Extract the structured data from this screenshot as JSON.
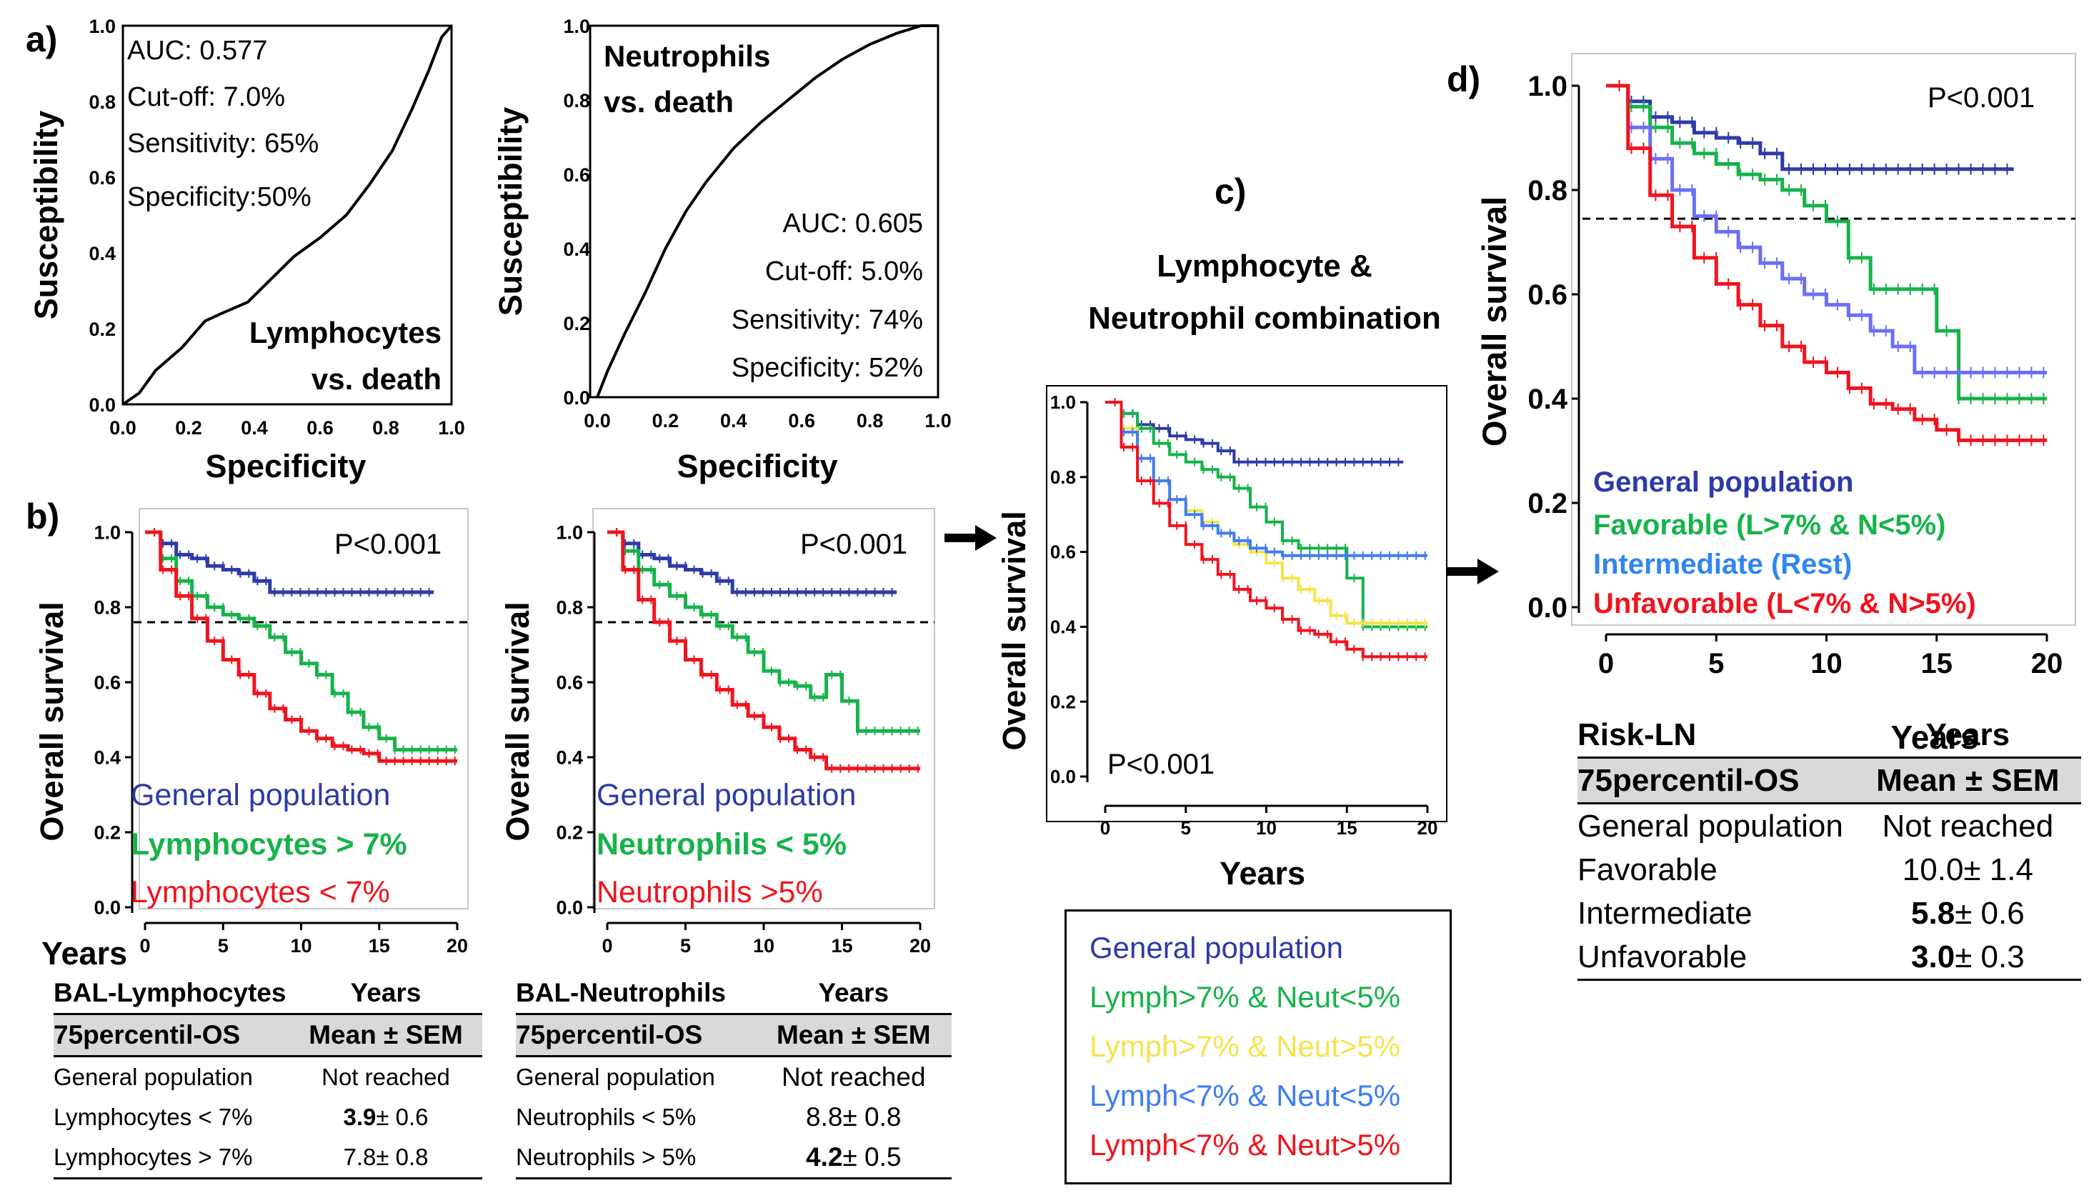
{
  "panels": {
    "a_label": "a)",
    "b_label": "b)",
    "c_label": "c)",
    "d_label": "d)"
  },
  "colors": {
    "general": "#2e3aa8",
    "lymph_gt7": "#16b34a",
    "lymph_lt7": "#f0141e",
    "yellow": "#f5e44c",
    "lightblue": "#3f7df2",
    "intermediate": "#6b6ff5",
    "intermediate_text": "#2f86f0"
  },
  "roc_lymph": {
    "ylabel": "Susceptibility",
    "xlabel": "Specificity",
    "ticks": [
      "0.0",
      "0.2",
      "0.4",
      "0.6",
      "0.8",
      "1.0"
    ],
    "ann": [
      "AUC: 0.577",
      "Cut-off: 7.0%",
      "Sensitivity: 65%",
      "Specificity:50%"
    ],
    "title1": "Lymphocytes",
    "title2": "vs. death"
  },
  "roc_neut": {
    "ylabel": "Susceptibility",
    "xlabel": "Specificity",
    "ticks": [
      "0.0",
      "0.2",
      "0.4",
      "0.6",
      "0.8",
      "1.0"
    ],
    "ann": [
      "AUC: 0.605",
      "Cut-off: 5.0%",
      "Sensitivity: 74%",
      "Specificity: 52%"
    ],
    "title1": "Neutrophils",
    "title2": "vs. death"
  },
  "km_b1": {
    "ylabel": "Overall survival",
    "xlabel": "Years",
    "pval": "P<0.001",
    "yticks": [
      "0.0",
      "0.2",
      "0.4",
      "0.6",
      "0.8",
      "1.0"
    ],
    "xticks": [
      "0",
      "5",
      "10",
      "15",
      "20"
    ],
    "legend": [
      "General population",
      "Lymphocytes > 7%",
      "Lymphocytes < 7%"
    ]
  },
  "km_b2": {
    "ylabel": "Overall survival",
    "pval": "P<0.001",
    "yticks": [
      "0.0",
      "0.2",
      "0.4",
      "0.6",
      "0.8",
      "1.0"
    ],
    "xticks": [
      "0",
      "5",
      "10",
      "15",
      "20"
    ],
    "legend": [
      "General population",
      "Neutrophils < 5%",
      "Neutrophils >5%"
    ]
  },
  "km_c": {
    "title1": "Lymphocyte &",
    "title2": "Neutrophil combination",
    "ylabel": "Overall survival",
    "xlabel": "Years",
    "pval": "P<0.001",
    "yticks": [
      "0.0",
      "0.2",
      "0.4",
      "0.6",
      "0.8",
      "1.0"
    ],
    "xticks": [
      "0",
      "5",
      "10",
      "15",
      "20"
    ],
    "legend": [
      "General population",
      "Lymph>7% & Neut<5%",
      "Lymph>7% & Neut>5%",
      "Lymph<7% & Neut<5%",
      "Lymph<7% & Neut>5%"
    ]
  },
  "km_d": {
    "ylabel": "Overall survival",
    "xlabel": "Years",
    "pval": "P<0.001",
    "yticks": [
      "0.0",
      "0.2",
      "0.4",
      "0.6",
      "0.8",
      "1.0"
    ],
    "xticks": [
      "0",
      "5",
      "10",
      "15",
      "20"
    ],
    "legend": [
      "General population",
      "Favorable (L>7% & N<5%)",
      "Intermediate (Rest)",
      "Unfavorable  (L<7% & N>5%)"
    ]
  },
  "table_b1": {
    "h1": "BAL-Lymphocytes",
    "h2": "Years",
    "s1": "75percentil-OS",
    "s2": "Mean ± SEM",
    "rows": [
      {
        "label": "General population",
        "value": "Not reached"
      },
      {
        "label": "Lymphocytes < 7%",
        "bold": "3.9",
        "rest": "± 0.6"
      },
      {
        "label": "Lymphocytes > 7%",
        "bold": "",
        "rest": "7.8± 0.8"
      }
    ]
  },
  "table_b2": {
    "h1": "BAL-Neutrophils",
    "h2": "Years",
    "s1": "75percentil-OS",
    "s2": "Mean ± SEM",
    "rows": [
      {
        "label": "General population",
        "value": "Not reached"
      },
      {
        "label": "Neutrophils < 5%",
        "bold": "",
        "rest": "8.8± 0.8"
      },
      {
        "label": "Neutrophils > 5%",
        "bold": "4.2",
        "rest": "± 0.5"
      }
    ]
  },
  "table_d": {
    "h1": "Risk-LN",
    "h2": "Years",
    "s1": "75percentil-OS",
    "s2": "Mean ± SEM",
    "rows": [
      {
        "label": "General population",
        "value": "Not reached"
      },
      {
        "label": "Favorable",
        "bold": "",
        "rest": "10.0± 1.4"
      },
      {
        "label": "Intermediate",
        "bold": "5.8",
        "rest": "± 0.6"
      },
      {
        "label": "Unfavorable",
        "bold": "3.0",
        "rest": "± 0.3"
      }
    ]
  },
  "chart_data": [
    {
      "type": "line",
      "panel": "a-left",
      "xlabel": "Specificity",
      "ylabel": "Susceptibility",
      "xlim": [
        0,
        1
      ],
      "ylim": [
        0,
        1
      ],
      "series": [
        {
          "x": [
            0,
            0.05,
            0.1,
            0.18,
            0.25,
            0.3,
            0.38,
            0.45,
            0.52,
            0.6,
            0.68,
            0.75,
            0.82,
            0.88,
            0.93,
            0.97,
            1.0
          ],
          "y": [
            0,
            0.03,
            0.09,
            0.15,
            0.22,
            0.24,
            0.27,
            0.33,
            0.39,
            0.44,
            0.5,
            0.58,
            0.67,
            0.78,
            0.88,
            0.97,
            1.0
          ]
        }
      ]
    },
    {
      "type": "line",
      "panel": "a-right",
      "xlabel": "Specificity",
      "ylabel": "Susceptibility",
      "xlim": [
        0,
        1
      ],
      "ylim": [
        0,
        1
      ],
      "series": [
        {
          "x": [
            0,
            0.03,
            0.08,
            0.14,
            0.2,
            0.26,
            0.32,
            0.4,
            0.48,
            0.56,
            0.64,
            0.72,
            0.8,
            0.88,
            0.95,
            1.0
          ],
          "y": [
            0,
            0.07,
            0.17,
            0.28,
            0.4,
            0.5,
            0.58,
            0.67,
            0.74,
            0.8,
            0.86,
            0.91,
            0.95,
            0.98,
            1.0,
            1.0
          ]
        }
      ]
    },
    {
      "type": "line",
      "panel": "b-left",
      "xlabel": "Years",
      "ylabel": "Overall survival",
      "xlim": [
        0,
        20
      ],
      "ylim": [
        0,
        1
      ],
      "reference_line_y": 0.76,
      "series": [
        {
          "name": "General population",
          "x": [
            0,
            1,
            2,
            3,
            4,
            5,
            6,
            7,
            8,
            10,
            12,
            14,
            16,
            18.5
          ],
          "y": [
            1,
            0.97,
            0.94,
            0.93,
            0.91,
            0.9,
            0.89,
            0.87,
            0.84,
            0.84,
            0.84,
            0.84,
            0.84,
            0.84
          ]
        },
        {
          "name": "Lymphocytes > 7%",
          "x": [
            0,
            1,
            2,
            3,
            4,
            5,
            6,
            7,
            8,
            9,
            10,
            11,
            12,
            13,
            14,
            15,
            16,
            18,
            20
          ],
          "y": [
            1,
            0.93,
            0.87,
            0.83,
            0.8,
            0.78,
            0.77,
            0.75,
            0.72,
            0.68,
            0.65,
            0.62,
            0.57,
            0.52,
            0.48,
            0.45,
            0.42,
            0.42,
            0.42
          ]
        },
        {
          "name": "Lymphocytes < 7%",
          "x": [
            0,
            1,
            2,
            3,
            4,
            5,
            6,
            7,
            8,
            9,
            10,
            11,
            12,
            13,
            14,
            15,
            16,
            18,
            20
          ],
          "y": [
            1,
            0.9,
            0.83,
            0.77,
            0.71,
            0.66,
            0.62,
            0.57,
            0.53,
            0.5,
            0.47,
            0.45,
            0.43,
            0.42,
            0.41,
            0.39,
            0.39,
            0.39,
            0.39
          ]
        }
      ]
    },
    {
      "type": "line",
      "panel": "b-right",
      "xlabel": "Years",
      "ylabel": "Overall survival",
      "xlim": [
        0,
        20
      ],
      "ylim": [
        0,
        1
      ],
      "reference_line_y": 0.76,
      "series": [
        {
          "name": "General population",
          "x": [
            0,
            1,
            2,
            3,
            4,
            5,
            6,
            7,
            8,
            10,
            12,
            14,
            16,
            18.5
          ],
          "y": [
            1,
            0.97,
            0.94,
            0.93,
            0.91,
            0.9,
            0.89,
            0.87,
            0.84,
            0.84,
            0.84,
            0.84,
            0.84,
            0.84
          ]
        },
        {
          "name": "Neutrophils < 5%",
          "x": [
            0,
            1,
            2,
            3,
            4,
            5,
            6,
            7,
            8,
            9,
            10,
            11,
            12,
            13,
            14,
            15,
            16,
            18,
            20
          ],
          "y": [
            1,
            0.95,
            0.9,
            0.86,
            0.83,
            0.8,
            0.78,
            0.75,
            0.72,
            0.68,
            0.63,
            0.6,
            0.59,
            0.56,
            0.62,
            0.55,
            0.47,
            0.47,
            0.47
          ]
        },
        {
          "name": "Neutrophils >5%",
          "x": [
            0,
            1,
            2,
            3,
            4,
            5,
            6,
            7,
            8,
            9,
            10,
            11,
            12,
            13,
            14,
            15,
            16,
            18,
            20
          ],
          "y": [
            1,
            0.9,
            0.82,
            0.76,
            0.71,
            0.66,
            0.62,
            0.58,
            0.54,
            0.51,
            0.48,
            0.45,
            0.42,
            0.4,
            0.37,
            0.37,
            0.37,
            0.37,
            0.37
          ]
        }
      ]
    },
    {
      "type": "line",
      "panel": "c",
      "xlabel": "Years",
      "ylabel": "Overall survival",
      "xlim": [
        0,
        20
      ],
      "ylim": [
        0,
        1
      ],
      "series": [
        {
          "name": "General population",
          "x": [
            0,
            1,
            2,
            3,
            4,
            5,
            6,
            7,
            8,
            10,
            12,
            14,
            16,
            18.5
          ],
          "y": [
            1,
            0.97,
            0.94,
            0.93,
            0.91,
            0.9,
            0.89,
            0.87,
            0.84,
            0.84,
            0.84,
            0.84,
            0.84,
            0.84
          ]
        },
        {
          "name": "Lymph>7% & Neut<5%",
          "x": [
            0,
            1,
            2,
            3,
            4,
            5,
            6,
            7,
            8,
            9,
            10,
            11,
            12,
            13,
            14,
            15,
            16,
            17,
            20
          ],
          "y": [
            1,
            0.97,
            0.93,
            0.89,
            0.86,
            0.84,
            0.82,
            0.8,
            0.77,
            0.72,
            0.68,
            0.63,
            0.61,
            0.61,
            0.61,
            0.53,
            0.4,
            0.4,
            0.4
          ]
        },
        {
          "name": "Lymph>7% & Neut>5%",
          "x": [
            0,
            1,
            2,
            3,
            4,
            5,
            6,
            7,
            8,
            9,
            10,
            11,
            12,
            13,
            14,
            15,
            16,
            18,
            20
          ],
          "y": [
            1,
            0.93,
            0.85,
            0.79,
            0.74,
            0.71,
            0.68,
            0.65,
            0.62,
            0.6,
            0.57,
            0.53,
            0.5,
            0.47,
            0.43,
            0.41,
            0.41,
            0.41,
            0.41
          ]
        },
        {
          "name": "Lymph<7% & Neut<5%",
          "x": [
            0,
            1,
            2,
            3,
            4,
            5,
            6,
            7,
            8,
            9,
            10,
            11,
            12,
            13,
            15,
            17,
            20
          ],
          "y": [
            1,
            0.92,
            0.85,
            0.79,
            0.74,
            0.7,
            0.67,
            0.65,
            0.63,
            0.61,
            0.6,
            0.59,
            0.59,
            0.59,
            0.59,
            0.59,
            0.59
          ]
        },
        {
          "name": "Lymph<7% & Neut>5%",
          "x": [
            0,
            1,
            2,
            3,
            4,
            5,
            6,
            7,
            8,
            9,
            10,
            11,
            12,
            13,
            14,
            15,
            16,
            18,
            20
          ],
          "y": [
            1,
            0.88,
            0.79,
            0.73,
            0.67,
            0.62,
            0.58,
            0.54,
            0.5,
            0.47,
            0.45,
            0.42,
            0.39,
            0.38,
            0.36,
            0.34,
            0.32,
            0.32,
            0.32
          ]
        }
      ]
    },
    {
      "type": "line",
      "panel": "d",
      "xlabel": "Years",
      "ylabel": "Overall survival",
      "xlim": [
        0,
        20
      ],
      "ylim": [
        0,
        1
      ],
      "reference_line_y": 0.745,
      "series": [
        {
          "name": "General population",
          "x": [
            0,
            1,
            2,
            3,
            4,
            5,
            6,
            7,
            8,
            10,
            12,
            14,
            16,
            18.5
          ],
          "y": [
            1,
            0.97,
            0.94,
            0.93,
            0.91,
            0.9,
            0.89,
            0.87,
            0.84,
            0.84,
            0.84,
            0.84,
            0.84,
            0.84
          ]
        },
        {
          "name": "Favorable (L>7% & N<5%)",
          "x": [
            0,
            1,
            2,
            3,
            4,
            5,
            6,
            7,
            8,
            9,
            10,
            11,
            12,
            13,
            14,
            15,
            16,
            17,
            20
          ],
          "y": [
            1,
            0.96,
            0.92,
            0.89,
            0.87,
            0.85,
            0.83,
            0.82,
            0.8,
            0.77,
            0.74,
            0.67,
            0.61,
            0.61,
            0.61,
            0.53,
            0.4,
            0.4,
            0.4
          ]
        },
        {
          "name": "Intermediate (Rest)",
          "x": [
            0,
            1,
            2,
            3,
            4,
            5,
            6,
            7,
            8,
            9,
            10,
            11,
            12,
            13,
            14,
            15,
            16,
            18,
            20
          ],
          "y": [
            1,
            0.92,
            0.86,
            0.8,
            0.75,
            0.72,
            0.69,
            0.66,
            0.63,
            0.6,
            0.58,
            0.56,
            0.53,
            0.5,
            0.45,
            0.45,
            0.45,
            0.45,
            0.45
          ]
        },
        {
          "name": "Unfavorable  (L<7% & N>5%)",
          "x": [
            0,
            1,
            2,
            3,
            4,
            5,
            6,
            7,
            8,
            9,
            10,
            11,
            12,
            13,
            14,
            15,
            16,
            18,
            20
          ],
          "y": [
            1,
            0.88,
            0.79,
            0.73,
            0.67,
            0.62,
            0.58,
            0.54,
            0.5,
            0.47,
            0.45,
            0.42,
            0.39,
            0.38,
            0.36,
            0.34,
            0.32,
            0.32,
            0.32
          ]
        }
      ]
    }
  ]
}
